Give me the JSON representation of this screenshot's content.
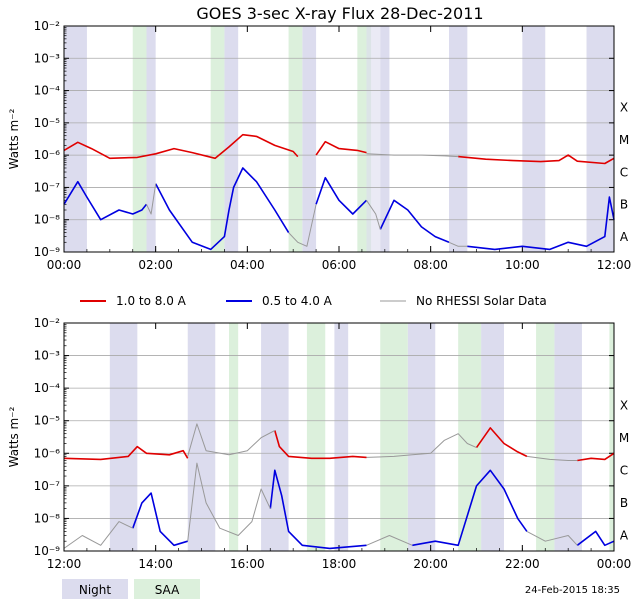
{
  "chart_data": [
    {
      "type": "line",
      "title": "GOES 3-sec X-ray Flux   28-Dec-2011",
      "ylabel": "Watts m⁻²",
      "y_scale": "log",
      "ylim_exp": [
        -9,
        -2
      ],
      "ytick_exps": [
        -9,
        -8,
        -7,
        -6,
        -5,
        -4,
        -3,
        -2
      ],
      "xlim_hours": [
        0,
        12
      ],
      "xtick_hours": [
        0,
        2,
        4,
        6,
        8,
        10,
        12
      ],
      "xtick_labels": [
        "00:00",
        "02:00",
        "04:00",
        "06:00",
        "08:00",
        "10:00",
        "12:00"
      ],
      "class_labels": [
        {
          "label": "A",
          "exp": -8
        },
        {
          "label": "B",
          "exp": -7
        },
        {
          "label": "C",
          "exp": -6
        },
        {
          "label": "M",
          "exp": -5
        },
        {
          "label": "X",
          "exp": -4
        }
      ],
      "night_bands_hours": [
        [
          0.0,
          0.5
        ],
        [
          1.8,
          2.0
        ],
        [
          3.5,
          3.8
        ],
        [
          5.2,
          5.5
        ],
        [
          6.9,
          7.1
        ],
        [
          8.4,
          8.8
        ],
        [
          10.0,
          10.5
        ],
        [
          11.4,
          12.0
        ]
      ],
      "saa_bands_hours": [
        [
          1.5,
          1.8
        ],
        [
          3.2,
          3.5
        ],
        [
          4.9,
          5.2
        ],
        [
          6.4,
          6.7
        ]
      ],
      "nodata_bands_hours": [
        [
          6.6,
          6.9
        ]
      ],
      "series": [
        {
          "name": "1.0 to 8.0 A",
          "color": "#e00000",
          "points": [
            [
              0,
              1.4e-06
            ],
            [
              0.3,
              2.5e-06
            ],
            [
              0.6,
              1.6e-06
            ],
            [
              1.0,
              8e-07
            ],
            [
              1.6,
              8.5e-07
            ],
            [
              2.0,
              1.1e-06
            ],
            [
              2.4,
              1.6e-06
            ],
            [
              2.8,
              1.2e-06
            ],
            [
              3.3,
              8e-07
            ],
            [
              3.6,
              1.8e-06
            ],
            [
              3.9,
              4.3e-06
            ],
            [
              4.2,
              3.8e-06
            ],
            [
              4.6,
              2e-06
            ],
            [
              5.0,
              1.3e-06
            ],
            [
              5.1,
              9e-07
            ]
          ]
        },
        {
          "name": "1.0 to 8.0 A (b)",
          "color": "#e00000",
          "points": [
            [
              5.5,
              1e-06
            ],
            [
              5.7,
              2.6e-06
            ],
            [
              6.0,
              1.6e-06
            ],
            [
              6.4,
              1.4e-06
            ],
            [
              6.6,
              1.2e-06
            ]
          ]
        },
        {
          "name": "1.0 to 8.0 A (c)",
          "color": "#e00000",
          "points": [
            [
              8.6,
              9e-07
            ],
            [
              9.2,
              7.5e-07
            ],
            [
              9.8,
              6.8e-07
            ],
            [
              10.4,
              6.3e-07
            ],
            [
              10.8,
              6.8e-07
            ],
            [
              11.0,
              1e-06
            ],
            [
              11.2,
              6.5e-07
            ],
            [
              11.8,
              5.5e-07
            ],
            [
              12.0,
              8e-07
            ]
          ]
        },
        {
          "name": "No RHESSI Solar Data (1-8 A)",
          "color": "#999999",
          "points": [
            [
              6.6,
              1.1e-06
            ],
            [
              7.2,
              1e-06
            ],
            [
              7.8,
              1e-06
            ],
            [
              8.3,
              9.5e-07
            ],
            [
              8.6,
              9e-07
            ]
          ]
        },
        {
          "name": "0.5 to 4.0 A",
          "color": "#0000e0",
          "points": [
            [
              0,
              3e-08
            ],
            [
              0.3,
              1.5e-07
            ],
            [
              0.5,
              5e-08
            ],
            [
              0.8,
              1e-08
            ],
            [
              1.2,
              2e-08
            ],
            [
              1.5,
              1.5e-08
            ],
            [
              1.7,
              2e-08
            ],
            [
              1.8,
              3e-08
            ]
          ]
        },
        {
          "name": "0.5 to 4.0 A (b)",
          "color": "#0000e0",
          "points": [
            [
              2.0,
              1.3e-07
            ],
            [
              2.3,
              2e-08
            ],
            [
              2.8,
              2e-09
            ],
            [
              3.2,
              1.2e-09
            ],
            [
              3.5,
              3e-09
            ],
            [
              3.6,
              2e-08
            ],
            [
              3.7,
              1e-07
            ],
            [
              3.9,
              4e-07
            ],
            [
              4.2,
              1.5e-07
            ],
            [
              4.6,
              2e-08
            ],
            [
              4.9,
              4e-09
            ]
          ]
        },
        {
          "name": "0.5 to 4.0 A (c)",
          "color": "#0000e0",
          "points": [
            [
              5.5,
              3e-08
            ],
            [
              5.7,
              2e-07
            ],
            [
              6.0,
              4e-08
            ],
            [
              6.3,
              1.5e-08
            ],
            [
              6.6,
              4e-08
            ]
          ]
        },
        {
          "name": "0.5 to 4.0 A (d)",
          "color": "#0000e0",
          "points": [
            [
              6.9,
              5e-09
            ],
            [
              7.2,
              4e-08
            ],
            [
              7.5,
              2e-08
            ],
            [
              7.8,
              6e-09
            ],
            [
              8.1,
              3e-09
            ],
            [
              8.4,
              2e-09
            ]
          ]
        },
        {
          "name": "0.5 to 4.0 A (e)",
          "color": "#0000e0",
          "points": [
            [
              8.8,
              1.5e-09
            ],
            [
              9.4,
              1.2e-09
            ],
            [
              10.0,
              1.5e-09
            ],
            [
              10.6,
              1.2e-09
            ],
            [
              11.0,
              2e-09
            ],
            [
              11.4,
              1.5e-09
            ],
            [
              11.8,
              3e-09
            ],
            [
              11.9,
              5e-08
            ],
            [
              12.0,
              1e-08
            ]
          ]
        },
        {
          "name": "No RHESSI Solar Data (0.5-4 A)",
          "color": "#999999",
          "points": [
            [
              1.8,
              3e-08
            ],
            [
              1.9,
              1.5e-08
            ],
            [
              2.0,
              1.3e-07
            ]
          ]
        },
        {
          "name": "No RHESSI Solar Data (0.5-4 A) b",
          "color": "#999999",
          "points": [
            [
              4.9,
              4e-09
            ],
            [
              5.1,
              2e-09
            ],
            [
              5.3,
              1.5e-09
            ],
            [
              5.5,
              3e-08
            ]
          ]
        },
        {
          "name": "No RHESSI Solar Data (0.5-4 A) c",
          "color": "#999999",
          "points": [
            [
              6.6,
              4e-08
            ],
            [
              6.8,
              1.5e-08
            ],
            [
              6.9,
              5e-09
            ]
          ]
        },
        {
          "name": "No RHESSI Solar Data (0.5-4 A) d",
          "color": "#999999",
          "points": [
            [
              8.4,
              2e-09
            ],
            [
              8.6,
              1.5e-09
            ],
            [
              8.8,
              1.5e-09
            ]
          ]
        }
      ]
    },
    {
      "type": "line",
      "title": "",
      "ylabel": "Watts m⁻²",
      "y_scale": "log",
      "ylim_exp": [
        -9,
        -2
      ],
      "ytick_exps": [
        -9,
        -8,
        -7,
        -6,
        -5,
        -4,
        -3,
        -2
      ],
      "xlim_hours": [
        12,
        24
      ],
      "xtick_hours": [
        12,
        14,
        16,
        18,
        20,
        22,
        24
      ],
      "xtick_labels": [
        "12:00",
        "14:00",
        "16:00",
        "18:00",
        "20:00",
        "22:00",
        "00:00"
      ],
      "class_labels": [
        {
          "label": "A",
          "exp": -8
        },
        {
          "label": "B",
          "exp": -7
        },
        {
          "label": "C",
          "exp": -6
        },
        {
          "label": "M",
          "exp": -5
        },
        {
          "label": "X",
          "exp": -4
        }
      ],
      "night_bands_hours": [
        [
          13.0,
          13.6
        ],
        [
          14.7,
          15.3
        ],
        [
          16.3,
          16.9
        ],
        [
          17.9,
          18.2
        ],
        [
          19.5,
          20.1
        ],
        [
          21.1,
          21.6
        ],
        [
          22.7,
          23.3
        ]
      ],
      "saa_bands_hours": [
        [
          15.6,
          15.8
        ],
        [
          17.3,
          17.7
        ],
        [
          18.9,
          19.5
        ],
        [
          20.6,
          21.1
        ],
        [
          22.3,
          22.7
        ],
        [
          23.9,
          24.0
        ]
      ],
      "nodata_bands_hours": [],
      "series": [
        {
          "name": "1.0 to 8.0 A",
          "color": "#e00000",
          "points": [
            [
              12.0,
              7e-07
            ],
            [
              12.8,
              6.5e-07
            ],
            [
              13.4,
              8e-07
            ],
            [
              13.6,
              1.6e-06
            ],
            [
              13.8,
              1e-06
            ],
            [
              14.3,
              9e-07
            ],
            [
              14.6,
              1.2e-06
            ],
            [
              14.7,
              7e-07
            ]
          ]
        },
        {
          "name": "1.0 to 8.0 A (b)",
          "color": "#e00000",
          "points": [
            [
              16.6,
              5e-06
            ],
            [
              16.7,
              1.6e-06
            ],
            [
              16.9,
              8e-07
            ],
            [
              17.4,
              7e-07
            ],
            [
              17.8,
              7e-07
            ],
            [
              18.3,
              8e-07
            ],
            [
              18.6,
              7.5e-07
            ]
          ]
        },
        {
          "name": "1.0 to 8.0 A (c)",
          "color": "#e00000",
          "points": [
            [
              21.0,
              1.5e-06
            ],
            [
              21.3,
              6e-06
            ],
            [
              21.6,
              2e-06
            ],
            [
              21.9,
              1.1e-06
            ],
            [
              22.1,
              8e-07
            ]
          ]
        },
        {
          "name": "1.0 to 8.0 A (d)",
          "color": "#e00000",
          "points": [
            [
              23.2,
              6e-07
            ],
            [
              23.5,
              7e-07
            ],
            [
              23.8,
              6.5e-07
            ],
            [
              24.0,
              1e-06
            ]
          ]
        },
        {
          "name": "No RHESSI Solar Data (1-8 A)",
          "color": "#999999",
          "points": [
            [
              14.7,
              8e-07
            ],
            [
              14.9,
              8e-06
            ],
            [
              15.1,
              1.2e-06
            ],
            [
              15.6,
              9e-07
            ],
            [
              16.0,
              1.2e-06
            ],
            [
              16.3,
              3e-06
            ],
            [
              16.6,
              5e-06
            ]
          ]
        },
        {
          "name": "No RHESSI Solar Data (1-8 A) b",
          "color": "#999999",
          "points": [
            [
              18.6,
              7.5e-07
            ],
            [
              19.2,
              8e-07
            ],
            [
              19.6,
              9e-07
            ],
            [
              20.0,
              1e-06
            ],
            [
              20.3,
              2.5e-06
            ],
            [
              20.6,
              4e-06
            ],
            [
              20.8,
              2e-06
            ],
            [
              21.0,
              1.5e-06
            ]
          ]
        },
        {
          "name": "No RHESSI Solar Data (1-8 A) c",
          "color": "#999999",
          "points": [
            [
              22.1,
              8e-07
            ],
            [
              22.6,
              6.5e-07
            ],
            [
              23.0,
              6e-07
            ],
            [
              23.2,
              6e-07
            ]
          ]
        },
        {
          "name": "0.5 to 4.0 A",
          "color": "#0000e0",
          "points": [
            [
              13.5,
              5e-09
            ],
            [
              13.7,
              3e-08
            ],
            [
              13.9,
              6e-08
            ],
            [
              14.1,
              4e-09
            ],
            [
              14.4,
              1.5e-09
            ],
            [
              14.7,
              2e-09
            ]
          ]
        },
        {
          "name": "0.5 to 4.0 A (b)",
          "color": "#0000e0",
          "points": [
            [
              16.5,
              2e-08
            ],
            [
              16.6,
              3e-07
            ],
            [
              16.75,
              5e-08
            ],
            [
              16.9,
              4e-09
            ],
            [
              17.2,
              1.5e-09
            ],
            [
              17.8,
              1.2e-09
            ],
            [
              18.6,
              1.5e-09
            ]
          ]
        },
        {
          "name": "0.5 to 4.0 A (c)",
          "color": "#0000e0",
          "points": [
            [
              19.6,
              1.5e-09
            ],
            [
              20.1,
              2e-09
            ],
            [
              20.6,
              1.5e-09
            ],
            [
              21.0,
              1e-07
            ],
            [
              21.3,
              3e-07
            ],
            [
              21.6,
              8e-08
            ],
            [
              21.9,
              1e-08
            ],
            [
              22.1,
              4e-09
            ]
          ]
        },
        {
          "name": "0.5 to 4.0 A (d)",
          "color": "#0000e0",
          "points": [
            [
              23.2,
              1.5e-09
            ],
            [
              23.6,
              4e-09
            ],
            [
              23.8,
              1.5e-09
            ],
            [
              24.0,
              2e-09
            ]
          ]
        },
        {
          "name": "No RHESSI Solar Data (0.5-4 A)",
          "color": "#999999",
          "points": [
            [
              12.0,
              1.2e-09
            ],
            [
              12.4,
              3e-09
            ],
            [
              12.8,
              1.5e-09
            ],
            [
              13.2,
              8e-09
            ],
            [
              13.5,
              5e-09
            ]
          ]
        },
        {
          "name": "No RHESSI Solar Data (0.5-4 A) b",
          "color": "#999999",
          "points": [
            [
              14.7,
              2e-09
            ],
            [
              14.9,
              5e-07
            ],
            [
              15.1,
              3e-08
            ],
            [
              15.4,
              5e-09
            ],
            [
              15.8,
              3e-09
            ],
            [
              16.1,
              8e-09
            ],
            [
              16.3,
              8e-08
            ],
            [
              16.5,
              2e-08
            ]
          ]
        },
        {
          "name": "No RHESSI Solar Data (0.5-4 A) c",
          "color": "#999999",
          "points": [
            [
              18.6,
              1.5e-09
            ],
            [
              19.1,
              3e-09
            ],
            [
              19.6,
              1.5e-09
            ]
          ]
        },
        {
          "name": "No RHESSI Solar Data (0.5-4 A) d",
          "color": "#999999",
          "points": [
            [
              22.1,
              4e-09
            ],
            [
              22.5,
              2e-09
            ],
            [
              23.0,
              3e-09
            ],
            [
              23.2,
              1.5e-09
            ]
          ]
        }
      ]
    }
  ],
  "legend": {
    "items": [
      {
        "label": "1.0 to 8.0 A",
        "color": "#e00000"
      },
      {
        "label": "0.5 to 4.0 A",
        "color": "#0000e0"
      },
      {
        "label": "No RHESSI Solar Data",
        "color": "#999999"
      }
    ]
  },
  "key": {
    "night_label": "Night",
    "saa_label": "SAA",
    "night_color": "#dcdcee",
    "saa_color": "#dcf0dc"
  },
  "footer": {
    "timestamp": "24-Feb-2015 18:35"
  }
}
